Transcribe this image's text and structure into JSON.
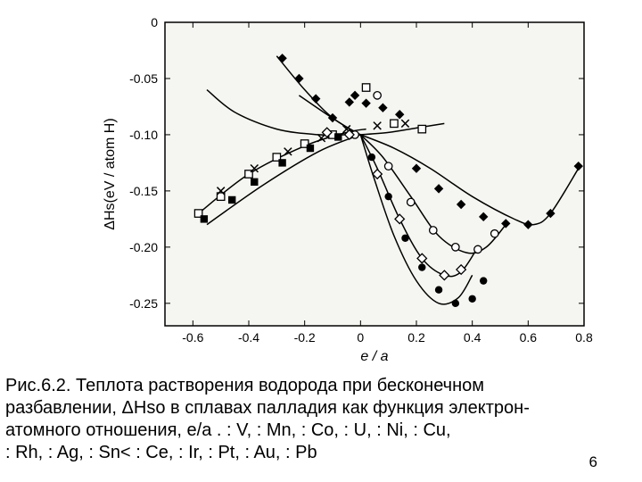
{
  "figure": {
    "xlim": [
      -0.7,
      0.8
    ],
    "ylim": [
      -0.27,
      0.0
    ],
    "xticks": [
      -0.6,
      -0.4,
      -0.2,
      0,
      0.2,
      0.4,
      0.6,
      0.8
    ],
    "yticks": [
      0,
      -0.05,
      -0.1,
      -0.15,
      -0.2,
      -0.25
    ],
    "ytick_labels": [
      "0",
      "-0.05",
      "-0.10",
      "-0.15",
      "-0.20",
      "-0.25"
    ],
    "xlabel": "e / a",
    "ylabel": "ΔHs(eV / atom H)",
    "background_color": "#f5f5f1",
    "axis_color": "#000000",
    "line_color": "#000000",
    "tick_fontsize": 14,
    "label_fontsize": 16,
    "line_width": 1.5,
    "curves": [
      {
        "name": "upper-left-diag",
        "pts": [
          [
            -0.58,
            -0.17
          ],
          [
            -0.4,
            -0.135
          ],
          [
            -0.2,
            -0.11
          ],
          [
            -0.05,
            -0.098
          ],
          [
            0.02,
            -0.095
          ]
        ]
      },
      {
        "name": "upper-left-diag2",
        "pts": [
          [
            -0.55,
            -0.18
          ],
          [
            -0.35,
            -0.145
          ],
          [
            -0.15,
            -0.115
          ],
          [
            0.0,
            -0.1
          ]
        ]
      },
      {
        "name": "top-short",
        "pts": [
          [
            -0.3,
            -0.03
          ],
          [
            -0.2,
            -0.06
          ],
          [
            -0.1,
            -0.085
          ],
          [
            0.0,
            -0.1
          ]
        ]
      },
      {
        "name": "top-short2",
        "pts": [
          [
            -0.22,
            -0.065
          ],
          [
            -0.12,
            -0.082
          ],
          [
            -0.02,
            -0.098
          ]
        ]
      },
      {
        "name": "fan-a",
        "pts": [
          [
            0.0,
            -0.1
          ],
          [
            0.1,
            -0.098
          ],
          [
            0.2,
            -0.094
          ],
          [
            0.3,
            -0.09
          ]
        ]
      },
      {
        "name": "fan-b",
        "pts": [
          [
            0.0,
            -0.1
          ],
          [
            0.12,
            -0.112
          ],
          [
            0.25,
            -0.13
          ],
          [
            0.4,
            -0.155
          ],
          [
            0.55,
            -0.175
          ],
          [
            0.62,
            -0.18
          ],
          [
            0.68,
            -0.17
          ],
          [
            0.78,
            -0.13
          ]
        ]
      },
      {
        "name": "fan-c",
        "pts": [
          [
            0.0,
            -0.1
          ],
          [
            0.08,
            -0.12
          ],
          [
            0.18,
            -0.155
          ],
          [
            0.28,
            -0.19
          ],
          [
            0.38,
            -0.205
          ],
          [
            0.45,
            -0.2
          ],
          [
            0.52,
            -0.18
          ]
        ]
      },
      {
        "name": "fan-d",
        "pts": [
          [
            0.0,
            -0.1
          ],
          [
            0.06,
            -0.13
          ],
          [
            0.14,
            -0.175
          ],
          [
            0.22,
            -0.21
          ],
          [
            0.3,
            -0.225
          ],
          [
            0.36,
            -0.222
          ],
          [
            0.42,
            -0.2
          ]
        ]
      },
      {
        "name": "fan-e",
        "pts": [
          [
            0.0,
            -0.1
          ],
          [
            0.05,
            -0.14
          ],
          [
            0.12,
            -0.19
          ],
          [
            0.2,
            -0.23
          ],
          [
            0.28,
            -0.25
          ],
          [
            0.35,
            -0.245
          ],
          [
            0.4,
            -0.225
          ]
        ]
      },
      {
        "name": "left-down",
        "pts": [
          [
            -0.05,
            -0.1
          ],
          [
            -0.15,
            -0.1
          ],
          [
            -0.3,
            -0.095
          ],
          [
            -0.45,
            -0.08
          ],
          [
            -0.55,
            -0.06
          ]
        ]
      }
    ],
    "markers": [
      {
        "shape": "open-square",
        "pts": [
          [
            -0.58,
            -0.17
          ],
          [
            -0.5,
            -0.155
          ],
          [
            -0.4,
            -0.135
          ],
          [
            -0.3,
            -0.12
          ],
          [
            -0.2,
            -0.108
          ],
          [
            -0.1,
            -0.1
          ],
          [
            0.02,
            -0.058
          ],
          [
            0.12,
            -0.09
          ],
          [
            0.22,
            -0.095
          ]
        ]
      },
      {
        "shape": "filled-square",
        "pts": [
          [
            -0.56,
            -0.175
          ],
          [
            -0.46,
            -0.158
          ],
          [
            -0.38,
            -0.142
          ],
          [
            -0.28,
            -0.125
          ],
          [
            -0.18,
            -0.112
          ],
          [
            -0.08,
            -0.102
          ]
        ]
      },
      {
        "shape": "filled-diamond",
        "pts": [
          [
            -0.28,
            -0.032
          ],
          [
            -0.22,
            -0.05
          ],
          [
            -0.16,
            -0.068
          ],
          [
            -0.1,
            -0.085
          ],
          [
            -0.04,
            -0.071
          ],
          [
            -0.02,
            -0.065
          ],
          [
            0.02,
            -0.072
          ],
          [
            0.08,
            -0.076
          ],
          [
            0.14,
            -0.082
          ],
          [
            0.2,
            -0.13
          ],
          [
            0.28,
            -0.148
          ],
          [
            0.36,
            -0.162
          ],
          [
            0.44,
            -0.173
          ],
          [
            0.52,
            -0.179
          ],
          [
            0.6,
            -0.18
          ],
          [
            0.68,
            -0.17
          ],
          [
            0.78,
            -0.128
          ]
        ]
      },
      {
        "shape": "open-circle",
        "pts": [
          [
            0.06,
            -0.065
          ],
          [
            -0.02,
            -0.1
          ],
          [
            0.1,
            -0.128
          ],
          [
            0.18,
            -0.16
          ],
          [
            0.26,
            -0.185
          ],
          [
            0.34,
            -0.2
          ],
          [
            0.42,
            -0.202
          ],
          [
            0.48,
            -0.188
          ]
        ]
      },
      {
        "shape": "filled-circle",
        "pts": [
          [
            0.04,
            -0.12
          ],
          [
            0.1,
            -0.155
          ],
          [
            0.16,
            -0.192
          ],
          [
            0.22,
            -0.218
          ],
          [
            0.28,
            -0.238
          ],
          [
            0.34,
            -0.25
          ],
          [
            0.4,
            -0.246
          ],
          [
            0.44,
            -0.23
          ]
        ]
      },
      {
        "shape": "x-mark",
        "pts": [
          [
            -0.5,
            -0.15
          ],
          [
            -0.38,
            -0.13
          ],
          [
            -0.26,
            -0.115
          ],
          [
            -0.14,
            -0.103
          ],
          [
            -0.05,
            -0.095
          ],
          [
            0.06,
            -0.092
          ],
          [
            0.16,
            -0.09
          ]
        ]
      },
      {
        "shape": "open-diamond",
        "pts": [
          [
            -0.12,
            -0.098
          ],
          [
            -0.04,
            -0.1
          ],
          [
            0.06,
            -0.135
          ],
          [
            0.14,
            -0.175
          ],
          [
            0.22,
            -0.21
          ],
          [
            0.3,
            -0.225
          ],
          [
            0.36,
            -0.22
          ]
        ]
      }
    ]
  },
  "caption": {
    "line1": "Рис.6.2. Теплота растворения водорода при бесконечном",
    "line2": "разбавлении, ΔHso в сплавах палладия как функция электрон-",
    "line3": "атомного отношения, e/a .   : V,   : Mn,   :  Co,   : U,   : Ni,   : Cu,",
    "line4": ": Rh,   : Ag,   : Sn<   : Ce,   : Ir,   : Pt,   : Au,   : Pb"
  },
  "pagenum": "6",
  "colors": {
    "text": "#000000"
  }
}
